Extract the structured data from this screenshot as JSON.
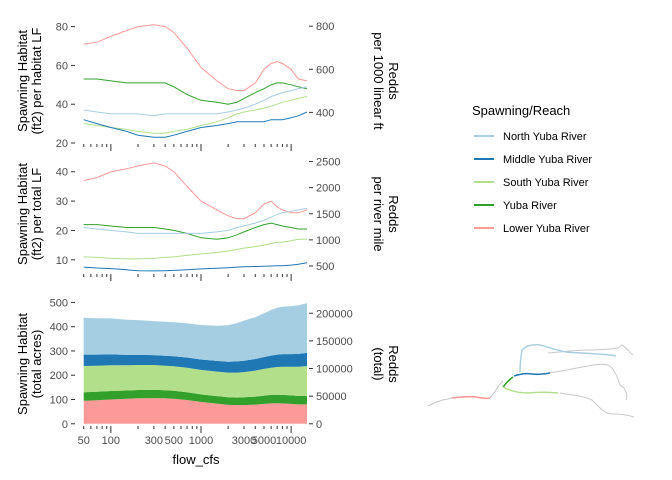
{
  "chart_data": [
    {
      "type": "line",
      "panel": "top",
      "xscale": "log",
      "xlim": [
        40,
        15000
      ],
      "ylim": [
        20,
        86
      ],
      "ylabel_lines": [
        "Spawning Habitat",
        "(ft2) per habitat LF"
      ],
      "y2label_lines": [
        "Redds",
        "per 1000 linear ft"
      ],
      "yticks": [
        "20",
        "40",
        "60",
        "80"
      ],
      "yticks_values": [
        20,
        40,
        60,
        80
      ],
      "y2ticks": [
        "400",
        "600",
        "800"
      ],
      "y2ticks_values": [
        400,
        600,
        800
      ],
      "y2lim": [
        258,
        852
      ],
      "series": [
        {
          "name": "Lower Yuba River",
          "x": [
            50,
            70,
            100,
            150,
            200,
            300,
            400,
            500,
            700,
            1000,
            1500,
            2000,
            2500,
            3000,
            4000,
            5000,
            6000,
            7000,
            8000,
            10000,
            12000,
            15000
          ],
          "values": [
            71,
            72,
            75,
            78,
            80,
            81,
            80,
            77,
            69,
            59,
            52,
            48,
            47,
            47,
            51,
            58,
            61,
            62,
            61,
            58,
            53,
            52
          ]
        },
        {
          "name": "Yuba River",
          "x": [
            50,
            70,
            100,
            150,
            200,
            300,
            400,
            500,
            700,
            1000,
            1500,
            2000,
            2500,
            3000,
            4000,
            5000,
            6000,
            7000,
            8000,
            10000,
            12000,
            15000
          ],
          "values": [
            53,
            53,
            52,
            51,
            51,
            51,
            51,
            49,
            45,
            42,
            41,
            40,
            41,
            43,
            46,
            48,
            50,
            51,
            51,
            50,
            49,
            48
          ]
        },
        {
          "name": "North Yuba River",
          "x": [
            50,
            70,
            100,
            150,
            200,
            300,
            400,
            500,
            700,
            1000,
            1500,
            2000,
            2500,
            3000,
            4000,
            5000,
            6000,
            7000,
            8000,
            10000,
            12000,
            15000
          ],
          "values": [
            37,
            36,
            35,
            35,
            35,
            34,
            35,
            35,
            35,
            35,
            35,
            36,
            37,
            38,
            40,
            42,
            44,
            45,
            46,
            47,
            48,
            49
          ]
        },
        {
          "name": "South Yuba River",
          "x": [
            50,
            70,
            100,
            150,
            200,
            300,
            400,
            500,
            700,
            1000,
            1500,
            2000,
            2500,
            3000,
            4000,
            5000,
            6000,
            7000,
            8000,
            10000,
            12000,
            15000
          ],
          "values": [
            30,
            29,
            28,
            27,
            26,
            25,
            25,
            26,
            27,
            29,
            31,
            33,
            35,
            36,
            37,
            38,
            39,
            40,
            41,
            42,
            43,
            44
          ]
        },
        {
          "name": "Middle Yuba River",
          "x": [
            50,
            70,
            100,
            150,
            200,
            300,
            400,
            500,
            700,
            1000,
            1500,
            2000,
            2500,
            3000,
            4000,
            5000,
            6000,
            7000,
            8000,
            10000,
            12000,
            15000
          ],
          "values": [
            32,
            30,
            28,
            26,
            24,
            23,
            23,
            24,
            26,
            28,
            29,
            30,
            31,
            31,
            31,
            31,
            32,
            32,
            32,
            33,
            34,
            36
          ]
        }
      ]
    },
    {
      "type": "line",
      "panel": "middle",
      "xscale": "log",
      "xlim": [
        40,
        15000
      ],
      "ylim": [
        5.5,
        44
      ],
      "ylabel_lines": [
        "Spawning Habitat",
        "(ft2) per total LF"
      ],
      "y2label_lines": [
        "Redds",
        "per river mile"
      ],
      "yticks": [
        "10",
        "20",
        "30",
        "40"
      ],
      "yticks_values": [
        10,
        20,
        30,
        40
      ],
      "y2ticks": [
        "500",
        "1000",
        "1500",
        "2000",
        "2500"
      ],
      "y2ticks_values": [
        500,
        1000,
        1500,
        2000,
        2500
      ],
      "y2lim": [
        365,
        2530
      ],
      "series": [
        {
          "name": "Lower Yuba River",
          "x": [
            50,
            70,
            100,
            150,
            200,
            300,
            400,
            500,
            700,
            1000,
            1500,
            2000,
            2500,
            3000,
            4000,
            5000,
            6000,
            7000,
            8000,
            10000,
            12000,
            15000
          ],
          "values": [
            37,
            38,
            40,
            41,
            42,
            43,
            42,
            40,
            35,
            30,
            27,
            25,
            24,
            24,
            26,
            29,
            30,
            28,
            27,
            26,
            26,
            27
          ]
        },
        {
          "name": "Yuba River",
          "x": [
            50,
            70,
            100,
            150,
            200,
            300,
            400,
            500,
            700,
            1000,
            1500,
            2000,
            2500,
            3000,
            4000,
            5000,
            6000,
            7000,
            8000,
            10000,
            12000,
            15000
          ],
          "values": [
            22,
            22,
            21.5,
            21,
            21,
            21,
            20.5,
            20,
            19,
            17.5,
            17,
            17.5,
            18.5,
            19.5,
            21,
            22,
            22.5,
            22,
            21.5,
            21,
            20.5,
            20.5
          ]
        },
        {
          "name": "North Yuba River",
          "x": [
            50,
            70,
            100,
            150,
            200,
            300,
            400,
            500,
            700,
            1000,
            1500,
            2000,
            2500,
            3000,
            4000,
            5000,
            6000,
            7000,
            8000,
            10000,
            12000,
            15000
          ],
          "values": [
            21,
            20.5,
            20,
            19.5,
            19,
            19,
            19,
            19,
            19,
            19,
            19.5,
            20,
            21,
            21.5,
            22.5,
            23.5,
            24.5,
            25.5,
            26,
            26.5,
            27,
            27.5
          ]
        },
        {
          "name": "South Yuba River",
          "x": [
            50,
            70,
            100,
            150,
            200,
            300,
            400,
            500,
            700,
            1000,
            1500,
            2000,
            2500,
            3000,
            4000,
            5000,
            6000,
            7000,
            8000,
            10000,
            12000,
            15000
          ],
          "values": [
            11,
            10.8,
            10.5,
            10.3,
            10.3,
            10.5,
            10.8,
            11,
            11.5,
            12,
            12.5,
            13,
            13.5,
            14,
            14.5,
            15,
            15.5,
            16,
            16,
            16.5,
            17,
            17
          ]
        },
        {
          "name": "Middle Yuba River",
          "x": [
            50,
            70,
            100,
            150,
            200,
            300,
            400,
            500,
            700,
            1000,
            1500,
            2000,
            2500,
            3000,
            4000,
            5000,
            6000,
            7000,
            8000,
            10000,
            12000,
            15000
          ],
          "values": [
            7.5,
            7.2,
            7,
            6.6,
            6.3,
            6.2,
            6.3,
            6.4,
            6.6,
            6.9,
            7.1,
            7.3,
            7.5,
            7.6,
            7.7,
            7.8,
            7.9,
            8,
            8,
            8.2,
            8.5,
            9
          ]
        }
      ]
    },
    {
      "type": "area",
      "stacked": true,
      "panel": "bottom",
      "xscale": "log",
      "xlim": [
        40,
        15000
      ],
      "ylim": [
        -5,
        510
      ],
      "xlabel": "flow_cfs",
      "xticks": [
        "50",
        "100",
        "300",
        "500",
        "1000",
        "3000",
        "5000",
        "10000"
      ],
      "xticks_values": [
        50,
        100,
        300,
        500,
        1000,
        3000,
        5000,
        10000
      ],
      "ylabel_lines": [
        "Spawning Habitat",
        "(total acres)"
      ],
      "y2label_lines": [
        "Redds",
        "(total)"
      ],
      "yticks": [
        "0",
        "100",
        "200",
        "300",
        "400",
        "500"
      ],
      "yticks_values": [
        0,
        100,
        200,
        300,
        400,
        500
      ],
      "y2ticks": [
        "0",
        "50000",
        "100000",
        "150000",
        "200000"
      ],
      "y2ticks_values": [
        0,
        50000,
        100000,
        150000,
        200000
      ],
      "y2lim": [
        -2200,
        224000
      ],
      "x": [
        50,
        70,
        100,
        150,
        200,
        300,
        400,
        500,
        700,
        1000,
        1500,
        2000,
        2500,
        3000,
        4000,
        5000,
        6000,
        7000,
        8000,
        10000,
        12000,
        15000
      ],
      "series": [
        {
          "name": "Lower Yuba River",
          "values": [
            95,
            97,
            100,
            103,
            105,
            106,
            105,
            103,
            98,
            90,
            83,
            78,
            77,
            77,
            79,
            82,
            84,
            85,
            84,
            82,
            80,
            80
          ]
        },
        {
          "name": "Yuba River",
          "values": [
            35,
            35,
            35,
            34,
            34,
            34,
            33,
            33,
            32,
            31,
            31,
            31,
            31,
            32,
            33,
            34,
            35,
            35,
            35,
            35,
            35,
            35
          ]
        },
        {
          "name": "South Yuba River",
          "values": [
            108,
            107,
            106,
            104,
            103,
            102,
            101,
            101,
            101,
            101,
            101,
            102,
            103,
            104,
            107,
            110,
            112,
            114,
            116,
            118,
            120,
            123
          ]
        },
        {
          "name": "Middle Yuba River",
          "values": [
            47,
            46,
            45,
            43,
            42,
            41,
            41,
            41,
            42,
            43,
            44,
            45,
            46,
            47,
            48,
            49,
            50,
            51,
            52,
            52,
            53,
            54
          ]
        },
        {
          "name": "North Yuba River",
          "values": [
            152,
            150,
            148,
            145,
            143,
            140,
            140,
            140,
            141,
            142,
            145,
            150,
            158,
            165,
            172,
            180,
            188,
            193,
            195,
            198,
            200,
            205
          ]
        }
      ]
    }
  ],
  "legend": {
    "title": "Spawning/Reach",
    "items": [
      {
        "label": "North Yuba River",
        "color": "#a6cee3"
      },
      {
        "label": "Middle Yuba River",
        "color": "#1f78b4"
      },
      {
        "label": "South Yuba River",
        "color": "#b2df8a"
      },
      {
        "label": "Yuba River",
        "color": "#33a02c"
      },
      {
        "label": "Lower Yuba River",
        "color": "#fb9a99"
      }
    ]
  },
  "line_colors": {
    "North Yuba River": "#a6cee3",
    "Middle Yuba River": "#1f78b4",
    "South Yuba River": "#b2df8a",
    "Yuba River": "#33a02c",
    "Lower Yuba River": "#fb9a99"
  },
  "map": {
    "description_icon": "river-network-map",
    "other_river_color": "#c8c8c8"
  }
}
